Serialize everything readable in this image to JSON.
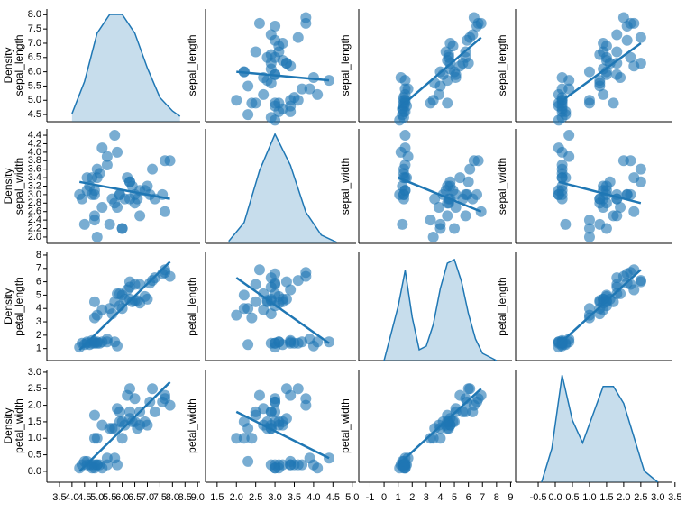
{
  "chart_data": {
    "type": "pairplot",
    "color": "#1f77b4",
    "density_label": "Density",
    "variables": [
      {
        "name": "sepal_length",
        "xlim": [
          3.0,
          9.1
        ],
        "ylim": [
          4.25,
          8.2
        ],
        "xticks": [
          3.5,
          {
            "value": 4,
            "label": "4.0"
          },
          4.5,
          {
            "value": 5,
            "label": "5.0"
          },
          5.5,
          {
            "value": 6,
            "label": "6.0"
          },
          6.5,
          {
            "value": 7,
            "label": "7.0"
          },
          7.5,
          {
            "value": 8,
            "label": "8.0"
          },
          8.5,
          {
            "value": 9,
            "label": "9.0"
          }
        ],
        "yticks": [
          4.5,
          {
            "value": 5,
            "label": "5.0"
          },
          5.5,
          {
            "value": 6,
            "label": "6.0"
          },
          6.5,
          {
            "value": 7,
            "label": "7.0"
          },
          7.5,
          {
            "value": 8,
            "label": "8.0"
          }
        ]
      },
      {
        "name": "sepal_width",
        "xlim": [
          1.2,
          5.1
        ],
        "ylim": [
          1.85,
          4.55
        ],
        "xticks": [
          1.5,
          {
            "value": 2,
            "label": "2.0"
          },
          2.5,
          {
            "value": 3,
            "label": "3.0"
          },
          3.5,
          {
            "value": 4,
            "label": "4.0"
          },
          4.5,
          {
            "value": 5,
            "label": "5.0"
          }
        ],
        "yticks": [
          {
            "value": 2,
            "label": "2.0"
          },
          2.2,
          2.4,
          2.6,
          2.8,
          {
            "value": 3,
            "label": "3.0"
          },
          3.2,
          3.4,
          3.6,
          3.8,
          {
            "value": 4,
            "label": "4.0"
          },
          4.2,
          4.4
        ]
      },
      {
        "name": "petal_length",
        "xlim": [
          -1.8,
          9.1
        ],
        "ylim": [
          0.1,
          8.2
        ],
        "xticks": [
          -1,
          0,
          1,
          2,
          3,
          4,
          5,
          6,
          7,
          8,
          9
        ],
        "yticks": [
          1,
          2,
          3,
          4,
          5,
          6,
          7,
          8
        ]
      },
      {
        "name": "petal_width",
        "xlim": [
          -1.16,
          3.4
        ],
        "ylim": [
          -0.33,
          3.08
        ],
        "xticks": [
          -0.5,
          {
            "value": 0,
            "label": "0.0"
          },
          0.5,
          {
            "value": 1,
            "label": "1.0"
          },
          1.5,
          {
            "value": 2,
            "label": "2.0"
          },
          2.5,
          {
            "value": 3,
            "label": "3.0"
          },
          3.5
        ],
        "yticks": [
          {
            "value": 0,
            "label": "0.0"
          },
          0.5,
          {
            "value": 1,
            "label": "1.0"
          },
          1.5,
          {
            "value": 2,
            "label": "2.0"
          },
          2.5,
          {
            "value": 3,
            "label": "3.0"
          }
        ]
      }
    ],
    "columns": [
      [
        5.1,
        4.9,
        4.7,
        4.6,
        5.0,
        5.4,
        4.6,
        5.0,
        4.4,
        4.9,
        5.4,
        4.8,
        4.8,
        4.3,
        5.8,
        5.7,
        5.2,
        4.5,
        7.0,
        6.4,
        6.9,
        5.5,
        6.5,
        5.7,
        6.3,
        4.9,
        6.6,
        5.2,
        5.0,
        5.9,
        6.0,
        6.1,
        5.6,
        6.7,
        6.3,
        5.8,
        7.1,
        6.3,
        6.5,
        7.6,
        4.9,
        7.3,
        6.7,
        7.2,
        7.7,
        7.7,
        6.0,
        7.9,
        6.2,
        5.9
      ],
      [
        3.5,
        3.0,
        3.2,
        3.1,
        3.6,
        3.9,
        3.4,
        3.4,
        2.9,
        3.1,
        3.7,
        3.4,
        3.0,
        3.0,
        4.0,
        4.4,
        4.1,
        2.3,
        3.2,
        3.2,
        3.1,
        2.3,
        2.8,
        2.8,
        3.3,
        2.4,
        2.9,
        2.7,
        2.0,
        3.0,
        2.2,
        2.9,
        2.9,
        3.1,
        3.3,
        2.7,
        3.0,
        2.9,
        3.0,
        3.0,
        2.5,
        2.9,
        2.5,
        3.6,
        3.8,
        2.6,
        2.2,
        3.8,
        3.4,
        3.0
      ],
      [
        1.4,
        1.4,
        1.3,
        1.5,
        1.4,
        1.7,
        1.4,
        1.5,
        1.4,
        1.5,
        1.5,
        1.6,
        1.4,
        1.1,
        1.2,
        1.5,
        1.5,
        1.3,
        4.7,
        4.5,
        4.9,
        4.0,
        4.6,
        4.5,
        4.7,
        3.3,
        4.6,
        3.9,
        3.5,
        4.2,
        4.0,
        4.7,
        3.6,
        4.4,
        6.0,
        5.1,
        5.9,
        5.6,
        5.8,
        6.6,
        4.5,
        6.3,
        5.8,
        6.1,
        6.7,
        6.9,
        5.0,
        6.4,
        5.4,
        5.1
      ],
      [
        0.2,
        0.2,
        0.2,
        0.2,
        0.2,
        0.4,
        0.3,
        0.2,
        0.2,
        0.1,
        0.2,
        0.2,
        0.1,
        0.1,
        0.2,
        0.4,
        0.1,
        0.3,
        1.4,
        1.5,
        1.5,
        1.3,
        1.5,
        1.3,
        1.6,
        1.0,
        1.3,
        1.4,
        1.0,
        1.5,
        1.0,
        1.4,
        1.3,
        1.4,
        2.5,
        1.9,
        2.1,
        1.8,
        2.2,
        2.1,
        1.7,
        1.8,
        1.8,
        2.5,
        2.2,
        2.3,
        1.5,
        2.0,
        2.3,
        1.8
      ]
    ],
    "kde": [
      {
        "x": [
          4.0,
          4.5,
          5.0,
          5.5,
          6.0,
          6.5,
          7.0,
          7.5,
          8.0,
          8.3
        ],
        "density": [
          0.03,
          0.15,
          0.33,
          0.4,
          0.4,
          0.33,
          0.2,
          0.09,
          0.04,
          0.02
        ],
        "ylim": [
          0,
          0.42
        ]
      },
      {
        "x": [
          1.8,
          2.2,
          2.6,
          3.0,
          3.4,
          3.8,
          4.2,
          4.6
        ],
        "density": [
          0.02,
          0.2,
          0.7,
          1.05,
          0.75,
          0.3,
          0.08,
          0.01
        ],
        "ylim": [
          0,
          1.1
        ]
      },
      {
        "x": [
          0,
          1,
          1.5,
          2,
          2.5,
          3,
          3.5,
          4,
          4.5,
          5,
          5.5,
          6,
          6.5,
          7,
          8
        ],
        "density": [
          0,
          0.15,
          0.25,
          0.12,
          0.03,
          0.04,
          0.1,
          0.2,
          0.27,
          0.28,
          0.22,
          0.13,
          0.06,
          0.02,
          0
        ],
        "ylim": [
          0,
          0.3
        ]
      },
      {
        "x": [
          -0.4,
          -0.1,
          0.2,
          0.5,
          0.8,
          1.1,
          1.4,
          1.7,
          2.0,
          2.3,
          2.6,
          3.0
        ],
        "density": [
          0,
          0.3,
          0.95,
          0.55,
          0.35,
          0.6,
          0.85,
          0.85,
          0.7,
          0.4,
          0.1,
          0
        ],
        "ylim": [
          0,
          1.0
        ]
      }
    ],
    "fits": [
      [
        null,
        [
          2.0,
          6.0,
          4.4,
          5.7
        ],
        [
          1.0,
          4.7,
          6.9,
          7.2
        ],
        [
          0.1,
          4.9,
          2.5,
          7.0
        ]
      ],
      [
        [
          4.3,
          3.3,
          7.9,
          2.9
        ],
        null,
        [
          1.0,
          3.4,
          6.9,
          2.6
        ],
        [
          0.1,
          3.3,
          2.5,
          2.8
        ]
      ],
      [
        [
          4.3,
          0.9,
          7.9,
          7.5
        ],
        [
          2.0,
          6.3,
          4.4,
          1.4
        ],
        null,
        [
          0.1,
          1.3,
          2.5,
          6.9
        ]
      ],
      [
        [
          4.3,
          0.0,
          7.9,
          2.7
        ],
        [
          2.0,
          1.8,
          4.4,
          0.4
        ],
        [
          1.0,
          0.2,
          6.9,
          2.5
        ],
        null
      ]
    ]
  }
}
